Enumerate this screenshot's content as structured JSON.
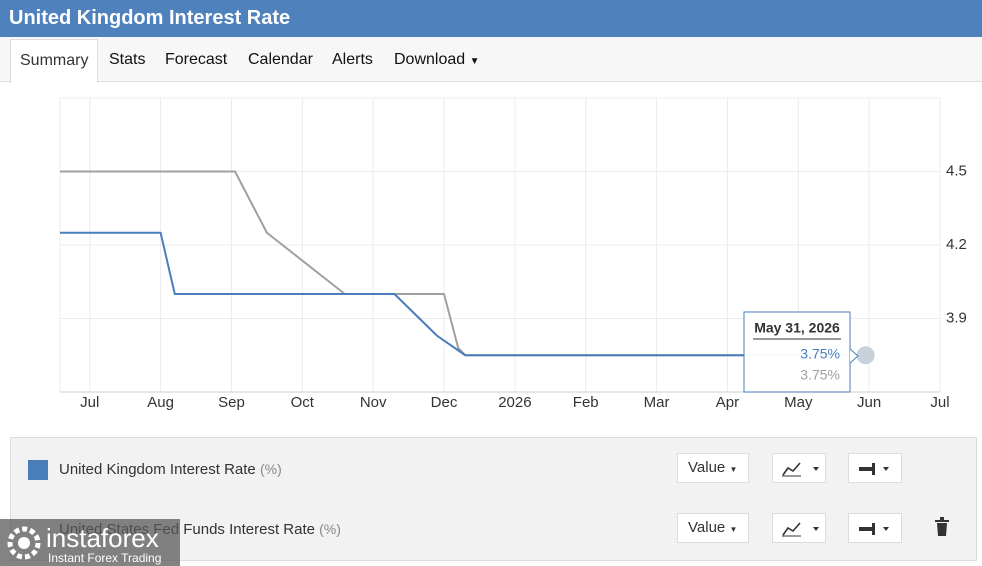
{
  "header": {
    "title": "United Kingdom Interest Rate"
  },
  "tabs": [
    "Summary",
    "Stats",
    "Forecast",
    "Calendar",
    "Alerts",
    "Download"
  ],
  "chart_data": {
    "type": "line",
    "xlim": [
      -0.42,
      12
    ],
    "xticks": [
      {
        "value": 0,
        "label": "Jul"
      },
      {
        "value": 1,
        "label": "Aug"
      },
      {
        "value": 2,
        "label": "Sep"
      },
      {
        "value": 3,
        "label": "Oct"
      },
      {
        "value": 4,
        "label": "Nov"
      },
      {
        "value": 5,
        "label": "Dec"
      },
      {
        "value": 6,
        "label": "2026"
      },
      {
        "value": 7,
        "label": "Feb"
      },
      {
        "value": 8,
        "label": "Mar"
      },
      {
        "value": 9,
        "label": "Apr"
      },
      {
        "value": 10,
        "label": "May"
      },
      {
        "value": 11,
        "label": "Jun"
      },
      {
        "value": 12,
        "label": "Jul"
      }
    ],
    "ylim": [
      3.6,
      4.8
    ],
    "yticks": [
      3.9,
      4.2,
      4.5
    ],
    "grid": true,
    "series": [
      {
        "name": "United Kingdom Interest Rate",
        "unit": "(%)",
        "color": "#4a7ebb",
        "x": [
          -0.42,
          1.0,
          1.2,
          4.3,
          4.9,
          5.3,
          10.95
        ],
        "values": [
          4.25,
          4.25,
          4.0,
          4.0,
          3.83,
          3.75,
          3.75
        ]
      },
      {
        "name": "United States Fed Funds Interest Rate",
        "unit": "(%)",
        "color": "#a0a0a0",
        "x": [
          -0.42,
          2.05,
          2.5,
          3.6,
          5.0,
          5.2,
          5.3,
          10.95
        ],
        "values": [
          4.5,
          4.5,
          4.25,
          4.0,
          4.0,
          3.78,
          3.75,
          3.75
        ]
      }
    ],
    "tooltip": {
      "title": "May 31, 2026",
      "lines": [
        "3.75%",
        "3.75%"
      ]
    }
  },
  "legend_controls": [
    "Value",
    "Value"
  ],
  "watermark": {
    "brand": "instaforex",
    "tagline": "Instant Forex Trading"
  }
}
